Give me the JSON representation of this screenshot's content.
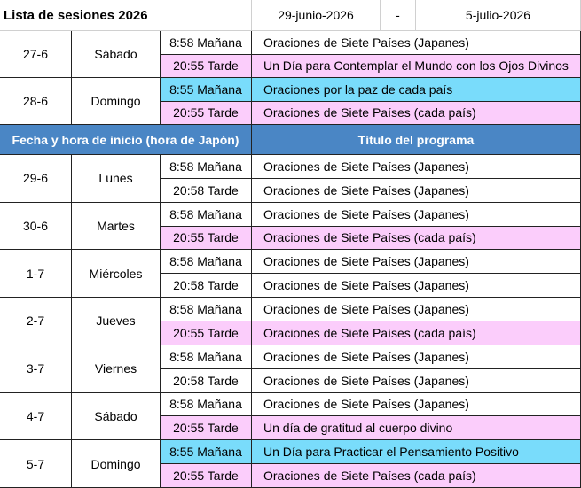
{
  "header": {
    "title": "Lista de sesiones 2026",
    "start_date": "29-junio-2026",
    "separator": "-",
    "end_date": "5-julio-2026"
  },
  "column_headers": {
    "date_time": "Fecha y hora de inicio (hora de Japón)",
    "program": "Título del programa"
  },
  "top_days": [
    {
      "date": "27-6",
      "weekday": "Sábado",
      "sessions": [
        {
          "time": "8:58 Mañana",
          "title": "Oraciones de Siete Países (Japanes)",
          "color": "#ffffff"
        },
        {
          "time": "20:55 Tarde",
          "title": "Un Día para Contemplar el Mundo con los Ojos Divinos",
          "color": "#fbcdfb"
        }
      ]
    },
    {
      "date": "28-6",
      "weekday": "Domingo",
      "sessions": [
        {
          "time": "8:55 Mañana",
          "title": "Oraciones por la paz de cada país",
          "color": "#79dcfb"
        },
        {
          "time": "20:55 Tarde",
          "title": "Oraciones de Siete Países (cada país)",
          "color": "#fbcdfb"
        }
      ]
    }
  ],
  "days": [
    {
      "date": "29-6",
      "weekday": "Lunes",
      "sessions": [
        {
          "time": "8:58 Mañana",
          "title": "Oraciones de Siete Países (Japanes)",
          "color": "#ffffff"
        },
        {
          "time": "20:58 Tarde",
          "title": "Oraciones de Siete Países (Japanes)",
          "color": "#ffffff"
        }
      ]
    },
    {
      "date": "30-6",
      "weekday": "Martes",
      "sessions": [
        {
          "time": "8:58 Mañana",
          "title": "Oraciones de Siete Países (Japanes)",
          "color": "#ffffff"
        },
        {
          "time": "20:55 Tarde",
          "title": "Oraciones de Siete Países (cada país)",
          "color": "#fbcdfb"
        }
      ]
    },
    {
      "date": "1-7",
      "weekday": "Miércoles",
      "sessions": [
        {
          "time": "8:58 Mañana",
          "title": "Oraciones de Siete Países (Japanes)",
          "color": "#ffffff"
        },
        {
          "time": "20:58 Tarde",
          "title": "Oraciones de Siete Países (Japanes)",
          "color": "#ffffff"
        }
      ]
    },
    {
      "date": "2-7",
      "weekday": "Jueves",
      "sessions": [
        {
          "time": "8:58 Mañana",
          "title": "Oraciones de Siete Países (Japanes)",
          "color": "#ffffff"
        },
        {
          "time": "20:55 Tarde",
          "title": "Oraciones de Siete Países (cada país)",
          "color": "#fbcdfb"
        }
      ]
    },
    {
      "date": "3-7",
      "weekday": "Viernes",
      "sessions": [
        {
          "time": "8:58 Mañana",
          "title": "Oraciones de Siete Países (Japanes)",
          "color": "#ffffff"
        },
        {
          "time": "20:58 Tarde",
          "title": "Oraciones de Siete Países (Japanes)",
          "color": "#ffffff"
        }
      ]
    },
    {
      "date": "4-7",
      "weekday": "Sábado",
      "sessions": [
        {
          "time": "8:58 Mañana",
          "title": "Oraciones de Siete Países (Japanes)",
          "color": "#ffffff"
        },
        {
          "time": "20:55 Tarde",
          "title": "Un día de gratitud al cuerpo divino",
          "color": "#fbcdfb"
        }
      ]
    },
    {
      "date": "5-7",
      "weekday": "Domingo",
      "sessions": [
        {
          "time": "8:55 Mañana",
          "title": "Un Día para Practicar el Pensamiento Positivo",
          "color": "#79dcfb"
        },
        {
          "time": "20:55 Tarde",
          "title": "Oraciones de Siete Países (cada país)",
          "color": "#fbcdfb"
        }
      ]
    }
  ]
}
